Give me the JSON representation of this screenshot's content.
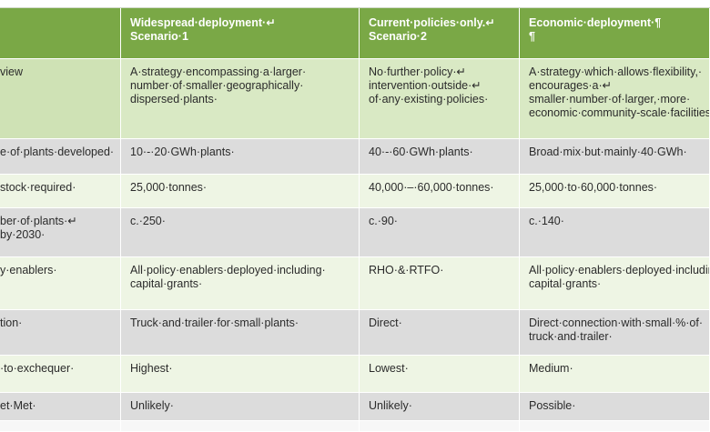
{
  "header": {
    "col0": "",
    "col1": "Widespread·deployment·↵\nScenario·1",
    "col2": "Current·policies·only.↵\nScenario·2",
    "col3": "Economic·deployment·¶\n¶"
  },
  "rows": [
    {
      "label": "view",
      "c1": "A·strategy·encompassing·a·larger·\nnumber·of·smaller·geographically·\ndispersed·plants·",
      "c2": "No·further·policy·↵\nintervention·outside·↵\nof·any·existing·policies·",
      "c3": "A·strategy·which·allows·flexibility,·\nencourages·a·↵\nsmaller·number·of·larger,·more·\neconomic·community-scale·facilities"
    },
    {
      "label": "e·of·plants·developed·",
      "c1": "10·-·20·GWh·plants·",
      "c2": "40·-·60·GWh·plants·",
      "c3": "Broad·mix·but·mainly·40·GWh·"
    },
    {
      "label": "stock·required·",
      "c1": "25,000·tonnes·",
      "c2": "40,000·–·60,000·tonnes·",
      "c3": "25,000·to·60,000·tonnes·"
    },
    {
      "label": "ber·of·plants·↵\nby·2030·",
      "c1": "c.·250·",
      "c2": "c.·90·",
      "c3": "c.·140·"
    },
    {
      "label": "y·enablers·",
      "c1": "All·policy·enablers·deployed·including·\ncapital·grants·",
      "c2": "RHO·&·RTFO·",
      "c3": "All·policy·enablers·deployed·including·\ncapital·grants·"
    },
    {
      "label": "tion·",
      "c1": "Truck·and·trailer·for·small·plants·",
      "c2": "Direct·",
      "c3": "Direct·connection·with·small·%·of·\ntruck·and·trailer·"
    },
    {
      "label": "·to·exchequer·",
      "c1": "Highest·",
      "c2": "Lowest·",
      "c3": "Medium·"
    },
    {
      "label": "et·Met·",
      "c1": "Unlikely·",
      "c2": "Unlikely·",
      "c3": "Possible·"
    }
  ]
}
